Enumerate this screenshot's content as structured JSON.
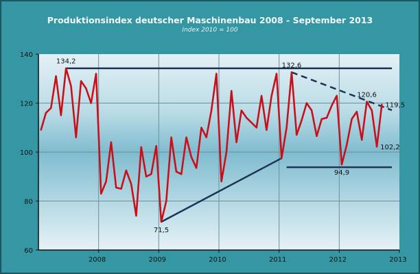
{
  "chart_data": {
    "type": "line",
    "title": "Produktionsindex deutscher Maschinenbau 2008 - September 2013",
    "subtitle": "Index 2010 = 100",
    "xlabel": "",
    "ylabel": "",
    "ylim": [
      60,
      140
    ],
    "xlim": [
      2007,
      2013
    ],
    "yticks": [
      "60",
      "80",
      "100",
      "120",
      "140"
    ],
    "xticks": [
      "2008",
      "2009",
      "2010",
      "2011",
      "2012",
      "2013"
    ],
    "grid": true,
    "legend": "none",
    "colors": {
      "series": "#c8101a",
      "trend": "#1c3556",
      "background": "#3597a3"
    },
    "series": [
      {
        "x": [
          "2007-01",
          "2007-02",
          "2007-03",
          "2007-04",
          "2007-05",
          "2007-06",
          "2007-07",
          "2007-08",
          "2007-09",
          "2007-10",
          "2007-11",
          "2007-12",
          "2008-01",
          "2008-02",
          "2008-03",
          "2008-04",
          "2008-05",
          "2008-06",
          "2008-07",
          "2008-08",
          "2008-09",
          "2008-10",
          "2008-11",
          "2008-12",
          "2009-01",
          "2009-02",
          "2009-03",
          "2009-04",
          "2009-05",
          "2009-06",
          "2009-07",
          "2009-08",
          "2009-09",
          "2009-10",
          "2009-11",
          "2009-12",
          "2010-01",
          "2010-02",
          "2010-03",
          "2010-04",
          "2010-05",
          "2010-06",
          "2010-07",
          "2010-08",
          "2010-09",
          "2010-10",
          "2010-11",
          "2010-12",
          "2011-01",
          "2011-02",
          "2011-03",
          "2011-04",
          "2011-05",
          "2011-06",
          "2011-07",
          "2011-08",
          "2011-09",
          "2011-10",
          "2011-11",
          "2011-12",
          "2012-01",
          "2012-02",
          "2012-03",
          "2012-04",
          "2012-05",
          "2012-06",
          "2012-07",
          "2012-08",
          "2012-09"
        ],
        "values": [
          109,
          116,
          118,
          131,
          115,
          134.2,
          127,
          106,
          129,
          126,
          120,
          132,
          83,
          88,
          104,
          85.5,
          85,
          92.5,
          87,
          74,
          102,
          90,
          91,
          102.5,
          71.5,
          80,
          106,
          92,
          91,
          106,
          98,
          93.5,
          110,
          106,
          117,
          132,
          88,
          100,
          125,
          104,
          117,
          114,
          112,
          110,
          123,
          109,
          123,
          132,
          97.5,
          110,
          132.6,
          107,
          113,
          120,
          117,
          106.5,
          113.5,
          114,
          119,
          123,
          94.9,
          103,
          113.5,
          116.5,
          105,
          120.6,
          117,
          102.2,
          119.5
        ]
      }
    ],
    "trend_lines": [
      {
        "from": [
          "2007-06",
          134.2
        ],
        "to": [
          "2012-11",
          134.2
        ],
        "style": "solid"
      },
      {
        "from": [
          "2009-01",
          71.5
        ],
        "to": [
          "2011-01",
          97.5
        ],
        "style": "solid"
      },
      {
        "from": [
          "2011-03",
          132.6
        ],
        "to": [
          "2012-11",
          117.1
        ],
        "style": "dashed"
      },
      {
        "from": [
          "2011-02",
          93.8
        ],
        "to": [
          "2012-11",
          93.8
        ],
        "style": "solid"
      }
    ],
    "annotations": [
      {
        "text": "134,2",
        "x": "2007-06",
        "y": 134.2,
        "pos": "above"
      },
      {
        "text": "71,5",
        "x": "2009-01",
        "y": 71.5,
        "pos": "below"
      },
      {
        "text": "132,6",
        "x": "2011-03",
        "y": 132.6,
        "pos": "above"
      },
      {
        "text": "94,9",
        "x": "2012-01",
        "y": 94.9,
        "pos": "below"
      },
      {
        "text": "120,6",
        "x": "2012-06",
        "y": 120.6,
        "pos": "above"
      },
      {
        "text": "102,2",
        "x": "2012-08",
        "y": 102.2,
        "pos": "right"
      },
      {
        "text": "119,5",
        "x": "2012-09",
        "y": 119.5,
        "pos": "right"
      }
    ]
  }
}
